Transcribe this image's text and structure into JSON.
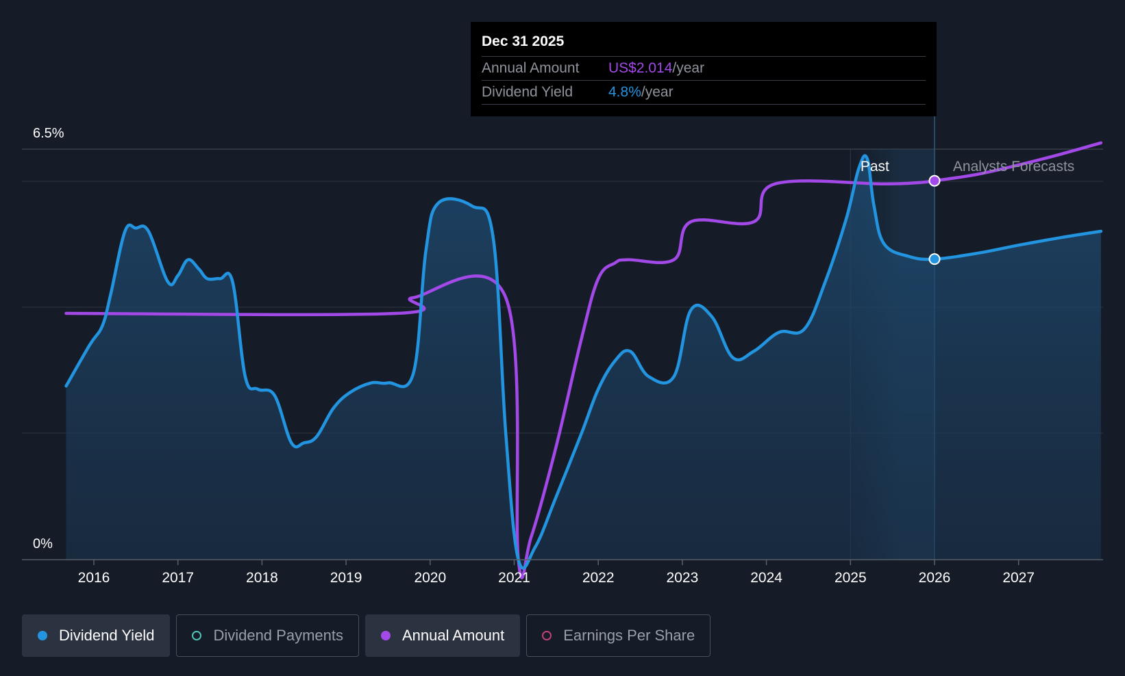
{
  "chart_data": {
    "type": "line",
    "x_axis": {
      "tick_labels": [
        "2016",
        "2017",
        "2018",
        "2019",
        "2020",
        "2021",
        "2022",
        "2023",
        "2024",
        "2025",
        "2026",
        "2027"
      ],
      "range": [
        2015.0,
        2028.0
      ]
    },
    "y_axis": {
      "top_label": "6.5%",
      "bottom_label": "0%",
      "range": [
        0,
        6.5
      ],
      "unit": "%"
    },
    "regions": {
      "past_label": "Past",
      "forecast_label": "Analysts Forecasts",
      "boundary_year": 2025.6
    },
    "series": [
      {
        "name": "Dividend Yield",
        "unit": "%",
        "color": "#2394df",
        "fill": true,
        "points": [
          [
            2015.67,
            2.75
          ],
          [
            2015.95,
            3.4
          ],
          [
            2016.1,
            3.7
          ],
          [
            2016.2,
            4.2
          ],
          [
            2016.37,
            5.2
          ],
          [
            2016.5,
            5.25
          ],
          [
            2016.65,
            5.2
          ],
          [
            2016.88,
            4.4
          ],
          [
            2017.0,
            4.5
          ],
          [
            2017.12,
            4.75
          ],
          [
            2017.25,
            4.6
          ],
          [
            2017.35,
            4.45
          ],
          [
            2017.5,
            4.45
          ],
          [
            2017.65,
            4.4
          ],
          [
            2017.8,
            2.9
          ],
          [
            2017.95,
            2.7
          ],
          [
            2018.15,
            2.6
          ],
          [
            2018.35,
            1.85
          ],
          [
            2018.5,
            1.85
          ],
          [
            2018.65,
            1.95
          ],
          [
            2018.85,
            2.4
          ],
          [
            2019.05,
            2.65
          ],
          [
            2019.3,
            2.8
          ],
          [
            2019.5,
            2.8
          ],
          [
            2019.8,
            2.95
          ],
          [
            2019.95,
            4.9
          ],
          [
            2020.1,
            5.65
          ],
          [
            2020.5,
            5.6
          ],
          [
            2020.75,
            5.1
          ],
          [
            2020.9,
            2.0
          ],
          [
            2021.05,
            0.0
          ],
          [
            2021.25,
            0.2
          ],
          [
            2021.5,
            1.0
          ],
          [
            2021.8,
            2.0
          ],
          [
            2022.0,
            2.7
          ],
          [
            2022.2,
            3.15
          ],
          [
            2022.38,
            3.3
          ],
          [
            2022.6,
            2.9
          ],
          [
            2022.9,
            2.9
          ],
          [
            2023.1,
            3.95
          ],
          [
            2023.35,
            3.85
          ],
          [
            2023.6,
            3.2
          ],
          [
            2023.85,
            3.3
          ],
          [
            2024.15,
            3.6
          ],
          [
            2024.45,
            3.65
          ],
          [
            2024.7,
            4.4
          ],
          [
            2024.95,
            5.4
          ],
          [
            2025.1,
            6.2
          ],
          [
            2025.2,
            6.35
          ],
          [
            2025.28,
            5.6
          ],
          [
            2025.4,
            5.0
          ],
          [
            2025.7,
            4.8
          ],
          [
            2026.0,
            4.76
          ],
          [
            2026.5,
            4.85
          ],
          [
            2027.0,
            4.98
          ],
          [
            2027.5,
            5.1
          ],
          [
            2027.98,
            5.2
          ]
        ]
      },
      {
        "name": "Annual Amount",
        "unit": "%",
        "color": "#a249e8",
        "fill": false,
        "points": [
          [
            2015.67,
            3.9
          ],
          [
            2019.6,
            3.9
          ],
          [
            2019.8,
            4.15
          ],
          [
            2020.9,
            4.15
          ],
          [
            2021.05,
            0.0
          ],
          [
            2021.2,
            0.35
          ],
          [
            2021.5,
            1.8
          ],
          [
            2021.8,
            3.5
          ],
          [
            2022.0,
            4.45
          ],
          [
            2022.2,
            4.7
          ],
          [
            2022.35,
            4.75
          ],
          [
            2022.9,
            4.75
          ],
          [
            2023.1,
            5.35
          ],
          [
            2023.85,
            5.35
          ],
          [
            2024.1,
            5.95
          ],
          [
            2025.4,
            5.95
          ],
          [
            2025.8,
            5.97
          ],
          [
            2026.0,
            6.0
          ],
          [
            2026.5,
            6.1
          ],
          [
            2027.0,
            6.25
          ],
          [
            2027.5,
            6.42
          ],
          [
            2027.98,
            6.6
          ]
        ]
      }
    ],
    "highlight": {
      "x": 2026.0,
      "yield_value": 4.76,
      "amount_value": 6.0
    },
    "tooltip": {
      "date": "Dec 31 2025",
      "rows": [
        {
          "name": "Annual Amount",
          "value": "US$2.014",
          "unit": "/year",
          "color": "#a249e8"
        },
        {
          "name": "Dividend Yield",
          "value": "4.8%",
          "unit": "/year",
          "color": "#2394df"
        }
      ]
    }
  },
  "legend": [
    {
      "label": "Dividend Yield",
      "active": true,
      "color": "#2394df"
    },
    {
      "label": "Dividend Payments",
      "active": false,
      "color": "#4fc6b8"
    },
    {
      "label": "Annual Amount",
      "active": true,
      "color": "#a249e8"
    },
    {
      "label": "Earnings Per Share",
      "active": false,
      "color": "#c2407c"
    }
  ]
}
